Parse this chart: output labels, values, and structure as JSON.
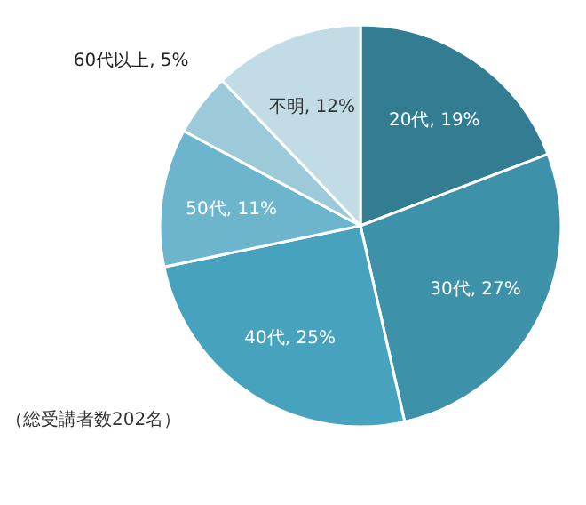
{
  "chart_data": {
    "type": "pie",
    "categories": [
      "20代",
      "30代",
      "40代",
      "50代",
      "60代以上",
      "不明"
    ],
    "values": [
      19,
      27,
      25,
      11,
      5,
      12
    ],
    "colors": [
      "#327d91",
      "#3d91a8",
      "#47a3bd",
      "#6cb5cc",
      "#9dcad9",
      "#c1dce5"
    ],
    "value_labels": [
      ", 19%",
      ", 27%",
      ", 25%",
      ", 11%",
      ", 5%",
      ", 12%"
    ],
    "legend": false,
    "annotations": [
      "（総受講者数202名）"
    ]
  }
}
